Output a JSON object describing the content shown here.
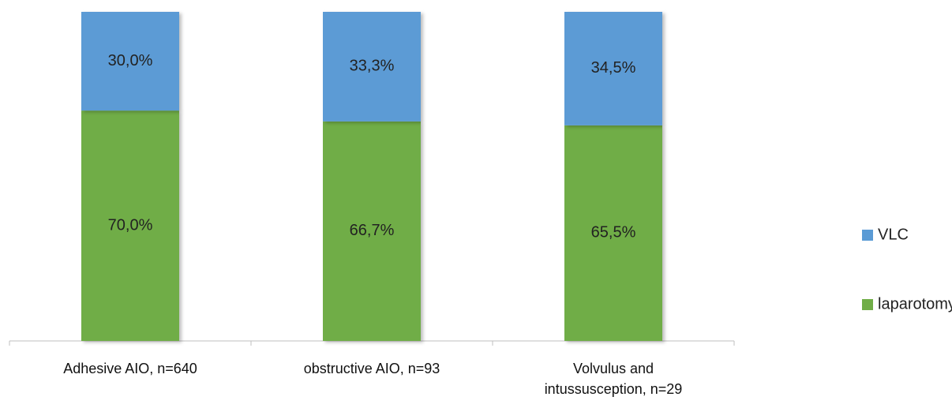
{
  "chart_data": {
    "type": "stacked_bar",
    "categories": [
      "Adhesive AIO, n=640",
      "obstructive AIO, n=93",
      "Volvulus and intussusception, n=29"
    ],
    "series": [
      {
        "name": "laparotomy",
        "color": "#70ad47",
        "values": [
          70.0,
          66.7,
          65.5
        ],
        "value_labels": [
          "70,0%",
          "66,7%",
          "65,5%"
        ]
      },
      {
        "name": "VLC",
        "color": "#5b9bd5",
        "values": [
          30.0,
          33.3,
          34.5
        ],
        "value_labels": [
          "30,0%",
          "33,3%",
          "34,5%"
        ]
      }
    ],
    "legend": "right"
  }
}
